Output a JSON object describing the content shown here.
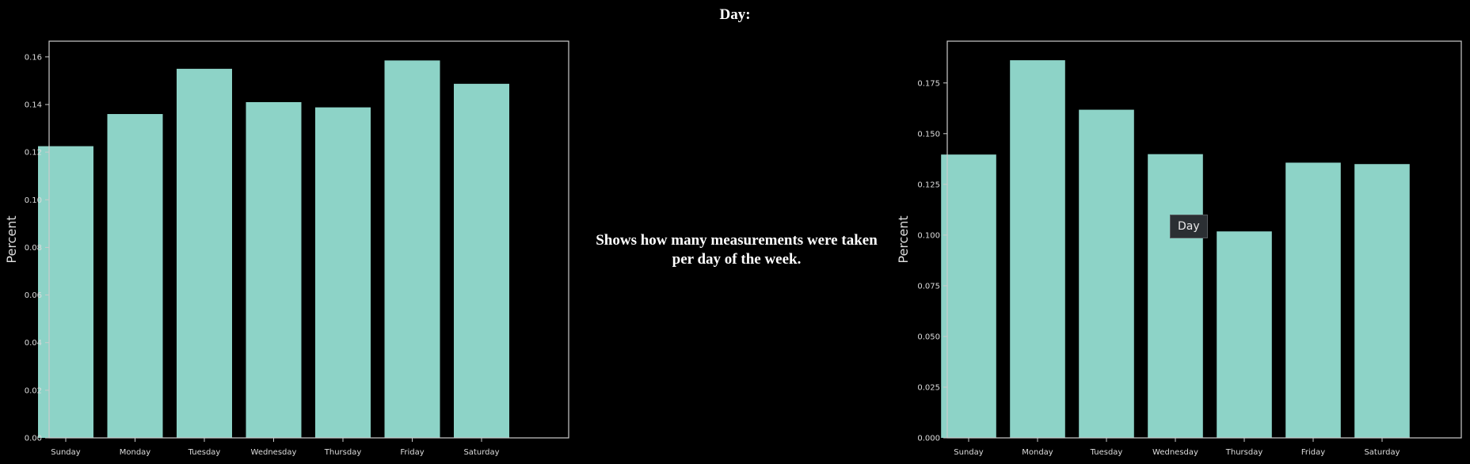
{
  "page": {
    "title": "Day:",
    "description": "Shows how many measurements were taken per day of the week."
  },
  "tooltip": {
    "text": "Day"
  },
  "colors": {
    "background": "#000000",
    "bar": "#8dd3c7",
    "axis": "#cccccc",
    "text": "#ffffff"
  },
  "chart_data": [
    {
      "type": "bar",
      "categories": [
        "Sunday",
        "Monday",
        "Tuesday",
        "Wednesday",
        "Thursday",
        "Friday",
        "Saturday"
      ],
      "values": [
        0.1225,
        0.136,
        0.155,
        0.141,
        0.1388,
        0.1585,
        0.1487
      ],
      "title": "",
      "xlabel": "",
      "ylabel": "Percent",
      "ylim": [
        0,
        0.1666
      ],
      "yticks": [
        "0.00",
        "0.02",
        "0.04",
        "0.06",
        "0.08",
        "0.10",
        "0.12",
        "0.14",
        "0.16"
      ],
      "ytick_values": [
        0,
        0.02,
        0.04,
        0.06,
        0.08,
        0.1,
        0.12,
        0.14,
        0.16
      ],
      "grid": false,
      "legend": "none"
    },
    {
      "type": "bar",
      "categories": [
        "Sunday",
        "Monday",
        "Tuesday",
        "Wednesday",
        "Thursday",
        "Friday",
        "Saturday"
      ],
      "values": [
        0.1397,
        0.1862,
        0.1618,
        0.1399,
        0.1018,
        0.1357,
        0.135
      ],
      "title": "",
      "xlabel": "",
      "ylabel": "Percent",
      "ylim": [
        0,
        0.1956
      ],
      "yticks": [
        "0.000",
        "0.025",
        "0.050",
        "0.075",
        "0.100",
        "0.125",
        "0.150",
        "0.175"
      ],
      "ytick_values": [
        0,
        0.025,
        0.05,
        0.075,
        0.1,
        0.125,
        0.15,
        0.175
      ],
      "grid": false,
      "legend": "none"
    }
  ]
}
